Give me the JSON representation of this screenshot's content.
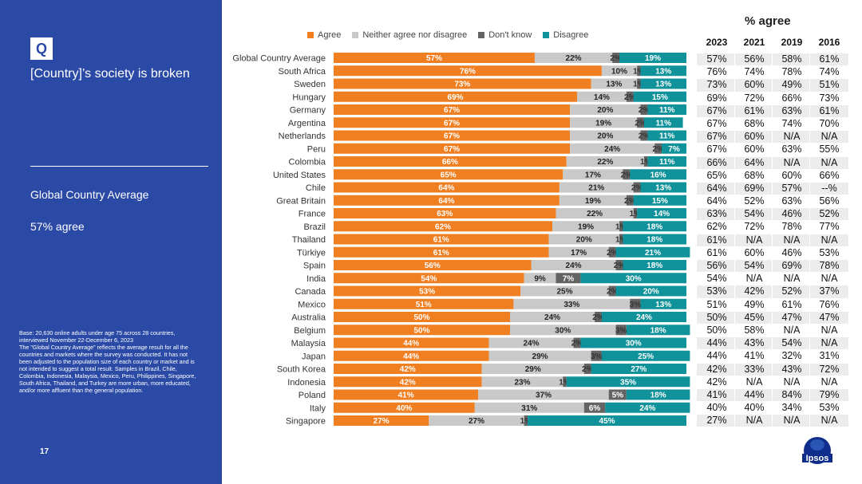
{
  "slide": {
    "q_label": "Q",
    "question": "[Country]’s society is broken",
    "gca_label": "Global Country Average",
    "gca_value": "57% agree",
    "base_note": "Base: 20,630 online adults under age 75 across 28 countries, interviewed November 22-December 6, 2023\nThe \"Global Country Average\" reflects the average result for all the countries and markets where the survey was conducted. It has not been adjusted to the population size of each country or market and is not intended to suggest a total result. Samples in Brazil, Chile, Colombia, Indonesia, Malaysia, Mexico, Peru, Philippines, Singapore, South Africa, Thailand, and Turkey are more urban, more educated, and/or more affluent than the general population.",
    "page_number": "17",
    "logo_text": "Ipsos"
  },
  "colors": {
    "agree": "#f07f22",
    "neither": "#c9c9c9",
    "dontknow": "#636363",
    "disagree": "#10929b",
    "brand": "#2b4aa6"
  },
  "table": {
    "title": "% agree",
    "years": [
      "2023",
      "2021",
      "2019",
      "2016"
    ],
    "rows": [
      [
        "57%",
        "56%",
        "58%",
        "61%"
      ],
      [
        "76%",
        "74%",
        "78%",
        "74%"
      ],
      [
        "73%",
        "60%",
        "49%",
        "51%"
      ],
      [
        "69%",
        "72%",
        "66%",
        "73%"
      ],
      [
        "67%",
        "61%",
        "63%",
        "61%"
      ],
      [
        "67%",
        "68%",
        "74%",
        "70%"
      ],
      [
        "67%",
        "60%",
        "N/A",
        "N/A"
      ],
      [
        "67%",
        "60%",
        "63%",
        "55%"
      ],
      [
        "66%",
        "64%",
        "N/A",
        "N/A"
      ],
      [
        "65%",
        "68%",
        "60%",
        "66%"
      ],
      [
        "64%",
        "69%",
        "57%",
        "--%"
      ],
      [
        "64%",
        "52%",
        "63%",
        "56%"
      ],
      [
        "63%",
        "54%",
        "46%",
        "52%"
      ],
      [
        "62%",
        "72%",
        "78%",
        "77%"
      ],
      [
        "61%",
        "N/A",
        "N/A",
        "N/A"
      ],
      [
        "61%",
        "60%",
        "46%",
        "53%"
      ],
      [
        "56%",
        "54%",
        "69%",
        "78%"
      ],
      [
        "54%",
        "N/A",
        "N/A",
        "N/A"
      ],
      [
        "53%",
        "42%",
        "52%",
        "37%"
      ],
      [
        "51%",
        "49%",
        "61%",
        "76%"
      ],
      [
        "50%",
        "45%",
        "47%",
        "47%"
      ],
      [
        "50%",
        "58%",
        "N/A",
        "N/A"
      ],
      [
        "44%",
        "43%",
        "54%",
        "N/A"
      ],
      [
        "44%",
        "41%",
        "32%",
        "31%"
      ],
      [
        "42%",
        "33%",
        "43%",
        "72%"
      ],
      [
        "42%",
        "N/A",
        "N/A",
        "N/A"
      ],
      [
        "41%",
        "44%",
        "84%",
        "79%"
      ],
      [
        "40%",
        "40%",
        "34%",
        "53%"
      ],
      [
        "27%",
        "N/A",
        "N/A",
        "N/A"
      ]
    ]
  },
  "chart_data": {
    "type": "bar",
    "orientation": "horizontal",
    "stacked": true,
    "legend_position": "top",
    "categories": [
      "Global Country Average",
      "South Africa",
      "Sweden",
      "Hungary",
      "Germany",
      "Argentina",
      "Netherlands",
      "Peru",
      "Colombia",
      "United States",
      "Chile",
      "Great Britain",
      "France",
      "Brazil",
      "Thailand",
      "Türkiye",
      "Spain",
      "India",
      "Canada",
      "Mexico",
      "Australia",
      "Belgium",
      "Malaysia",
      "Japan",
      "South Korea",
      "Indonesia",
      "Poland",
      "Italy",
      "Singapore"
    ],
    "series": [
      {
        "name": "Agree",
        "color": "#f07f22",
        "values": [
          57,
          76,
          73,
          69,
          67,
          67,
          67,
          67,
          66,
          65,
          64,
          64,
          63,
          62,
          61,
          61,
          56,
          54,
          53,
          51,
          50,
          50,
          44,
          44,
          42,
          42,
          41,
          40,
          27
        ]
      },
      {
        "name": "Neither agree nor disagree",
        "color": "#c9c9c9",
        "values": [
          22,
          10,
          13,
          14,
          20,
          19,
          20,
          24,
          22,
          17,
          21,
          19,
          22,
          19,
          20,
          17,
          24,
          9,
          25,
          33,
          24,
          30,
          24,
          29,
          29,
          23,
          37,
          31,
          27
        ]
      },
      {
        "name": "Don't know",
        "color": "#636363",
        "values": [
          2,
          1,
          1,
          2,
          2,
          2,
          2,
          2,
          1,
          2,
          2,
          2,
          1,
          1,
          1,
          2,
          2,
          7,
          2,
          3,
          2,
          3,
          2,
          3,
          2,
          1,
          5,
          6,
          1
        ]
      },
      {
        "name": "Disagree",
        "color": "#10929b",
        "values": [
          19,
          13,
          13,
          15,
          11,
          11,
          11,
          7,
          11,
          16,
          13,
          15,
          14,
          18,
          18,
          21,
          18,
          30,
          20,
          13,
          24,
          18,
          30,
          25,
          27,
          35,
          18,
          24,
          45
        ]
      }
    ],
    "value_suffix": "%",
    "xlim": [
      0,
      100
    ]
  }
}
